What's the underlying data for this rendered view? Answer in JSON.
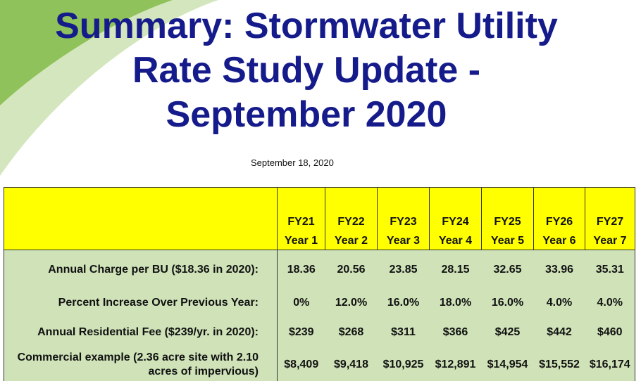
{
  "title_lines": [
    "Summary: Stormwater Utility",
    "Rate Study Update -",
    "September 2020"
  ],
  "date": "September 18, 2020",
  "colors": {
    "title": "#151b8a",
    "header_bg": "#ffff00",
    "body_bg": "#cfe2b8",
    "swoosh_light": "#c8e0a8",
    "swoosh_dark": "#7fb548"
  },
  "table": {
    "columns": [
      {
        "fy": "FY21",
        "year": "Year 1"
      },
      {
        "fy": "FY22",
        "year": "Year 2"
      },
      {
        "fy": "FY23",
        "year": "Year 3"
      },
      {
        "fy": "FY24",
        "year": "Year 4"
      },
      {
        "fy": "FY25",
        "year": "Year 5"
      },
      {
        "fy": "FY26",
        "year": "Year 6"
      },
      {
        "fy": "FY27",
        "year": "Year 7"
      }
    ],
    "rows": [
      {
        "label": "Annual Charge per BU ($18.36 in 2020):",
        "values": [
          "18.36",
          "20.56",
          "23.85",
          "28.15",
          "32.65",
          "33.96",
          "35.31"
        ]
      },
      {
        "label": "Percent Increase Over Previous Year:",
        "values": [
          "0%",
          "12.0%",
          "16.0%",
          "18.0%",
          "16.0%",
          "4.0%",
          "4.0%"
        ]
      },
      {
        "label": "Annual Residential Fee ($239/yr. in 2020):",
        "values": [
          "$239",
          "$268",
          "$311",
          "$366",
          "$425",
          "$442",
          "$460"
        ]
      },
      {
        "label": "Commercial example (2.36 acre site with 2.10 acres of impervious)",
        "values": [
          "$8,409",
          "$9,418",
          "$10,925",
          "$12,891",
          "$14,954",
          "$15,552",
          "$16,174"
        ]
      }
    ]
  }
}
